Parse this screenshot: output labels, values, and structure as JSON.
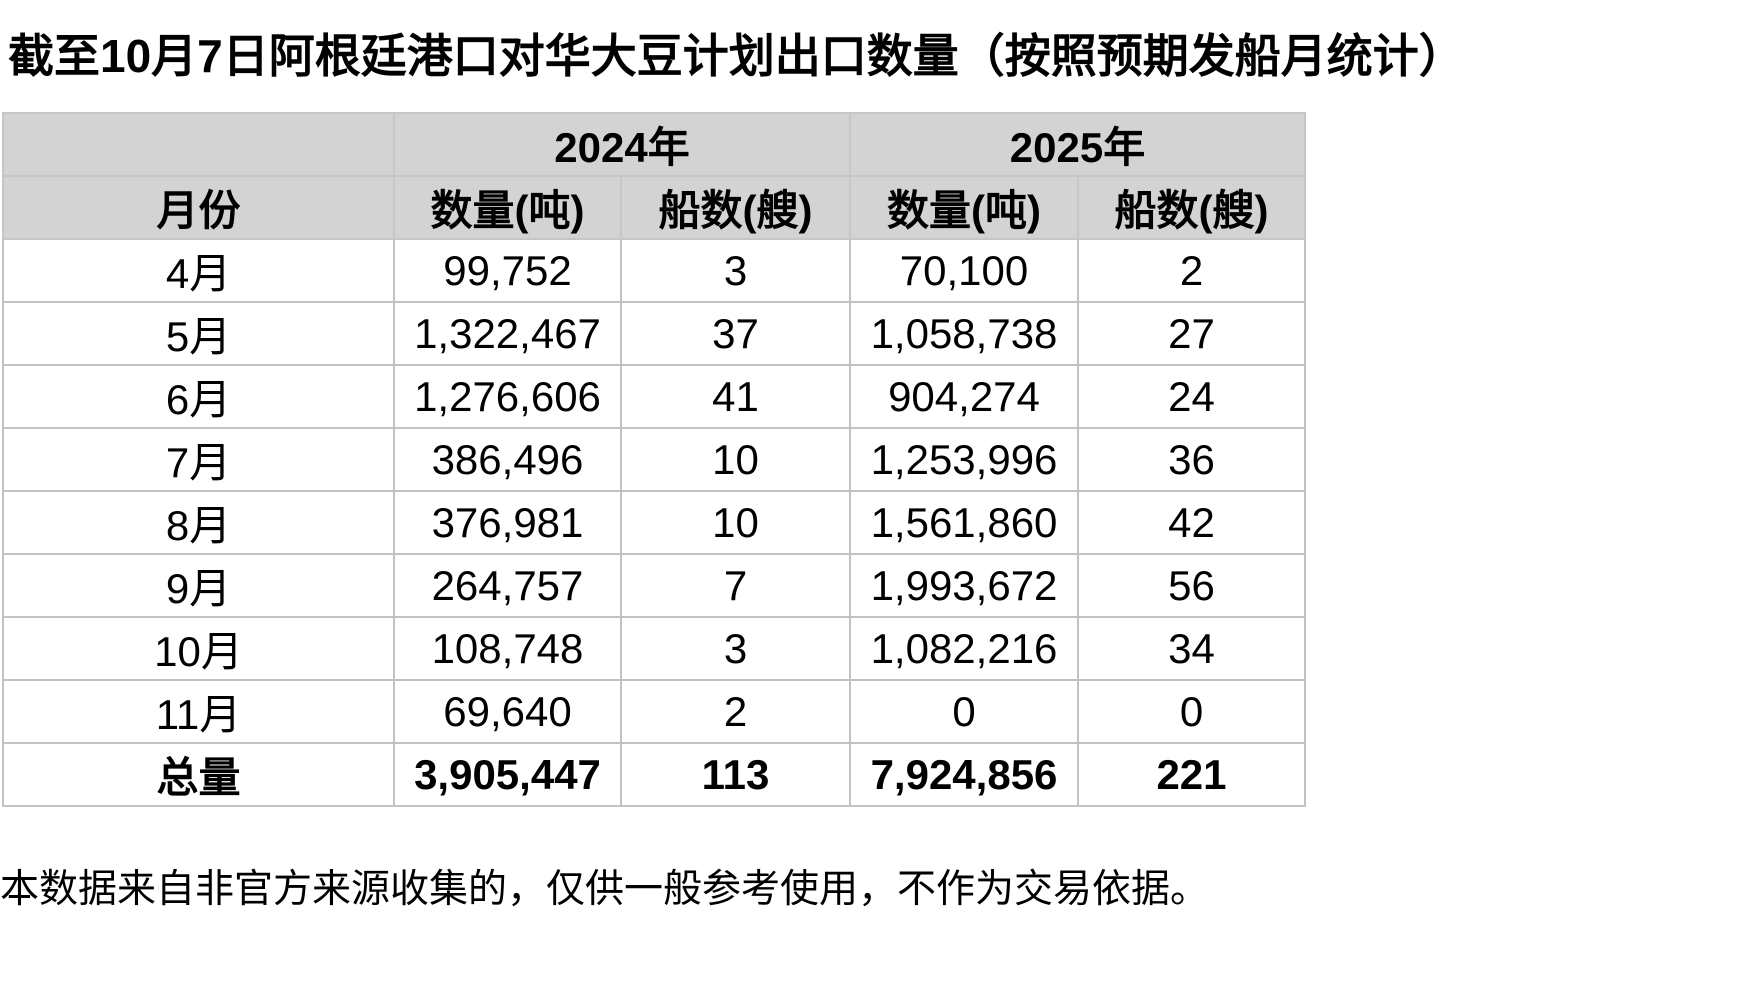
{
  "title": "截至10月7日阿根廷港口对华大豆计划出口数量（按照预期发船月统计）",
  "footer": "本数据来自非官方来源收集的，仅供一般参考使用，不作为交易依据。",
  "colors": {
    "header_bg": "#d3d3d3",
    "grid_border": "#c2c2c2",
    "text": "#000000",
    "page_bg": "#ffffff"
  },
  "table": {
    "year_headers": {
      "y2024": "2024年",
      "y2025": "2025年"
    },
    "col_headers": {
      "month": "月份",
      "qty2024": "数量(吨)",
      "ships2024": "船数(艘)",
      "qty2025": "数量(吨)",
      "ships2025": "船数(艘)"
    },
    "rows": [
      {
        "month": "4月",
        "qty2024": "99,752",
        "ships2024": "3",
        "qty2025": "70,100",
        "ships2025": "2"
      },
      {
        "month": "5月",
        "qty2024": "1,322,467",
        "ships2024": "37",
        "qty2025": "1,058,738",
        "ships2025": "27"
      },
      {
        "month": "6月",
        "qty2024": "1,276,606",
        "ships2024": "41",
        "qty2025": "904,274",
        "ships2025": "24"
      },
      {
        "month": "7月",
        "qty2024": "386,496",
        "ships2024": "10",
        "qty2025": "1,253,996",
        "ships2025": "36"
      },
      {
        "month": "8月",
        "qty2024": "376,981",
        "ships2024": "10",
        "qty2025": "1,561,860",
        "ships2025": "42"
      },
      {
        "month": "9月",
        "qty2024": "264,757",
        "ships2024": "7",
        "qty2025": "1,993,672",
        "ships2025": "56"
      },
      {
        "month": "10月",
        "qty2024": "108,748",
        "ships2024": "3",
        "qty2025": "1,082,216",
        "ships2025": "34"
      },
      {
        "month": "11月",
        "qty2024": "69,640",
        "ships2024": "2",
        "qty2025": "0",
        "ships2025": "0"
      }
    ],
    "total": {
      "month": "总量",
      "qty2024": "3,905,447",
      "ships2024": "113",
      "qty2025": "7,924,856",
      "ships2025": "221"
    }
  },
  "chart_data": {
    "type": "table",
    "title": "截至10月7日阿根廷港口对华大豆计划出口数量（按照预期发船月统计）",
    "categories": [
      "4月",
      "5月",
      "6月",
      "7月",
      "8月",
      "9月",
      "10月",
      "11月",
      "总量"
    ],
    "series": [
      {
        "name": "2024年 数量(吨)",
        "values": [
          99752,
          1322467,
          1276606,
          386496,
          376981,
          264757,
          108748,
          69640,
          3905447
        ]
      },
      {
        "name": "2024年 船数(艘)",
        "values": [
          3,
          37,
          41,
          10,
          10,
          7,
          3,
          2,
          113
        ]
      },
      {
        "name": "2025年 数量(吨)",
        "values": [
          70100,
          1058738,
          904274,
          1253996,
          1561860,
          1993672,
          1082216,
          0,
          7924856
        ]
      },
      {
        "name": "2025年 船数(艘)",
        "values": [
          2,
          27,
          24,
          36,
          42,
          56,
          34,
          0,
          221
        ]
      }
    ],
    "note": "本数据来自非官方来源收集的，仅供一般参考使用，不作为交易依据。"
  }
}
